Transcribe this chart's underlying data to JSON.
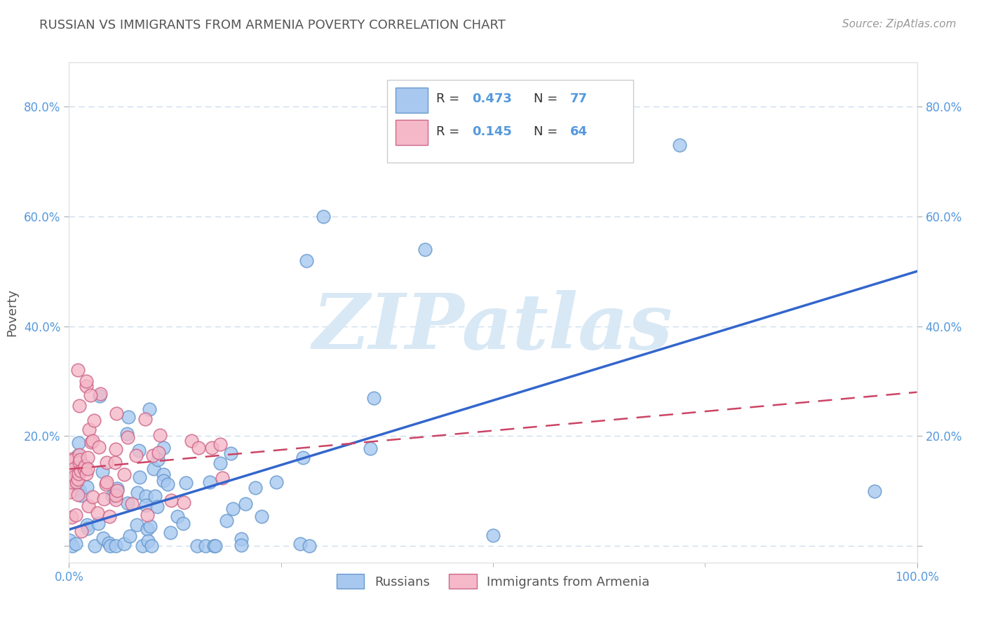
{
  "title": "RUSSIAN VS IMMIGRANTS FROM ARMENIA POVERTY CORRELATION CHART",
  "source": "Source: ZipAtlas.com",
  "ylabel": "Poverty",
  "xlim": [
    0,
    1.0
  ],
  "ylim": [
    -0.03,
    0.88
  ],
  "ytick_values": [
    0.0,
    0.2,
    0.4,
    0.6,
    0.8
  ],
  "ytick_labels": [
    "",
    "20.0%",
    "40.0%",
    "60.0%",
    "80.0%"
  ],
  "xtick_values": [
    0.0,
    1.0
  ],
  "xtick_labels": [
    "0.0%",
    "100.0%"
  ],
  "series1_color": "#a8c8f0",
  "series1_edge": "#6699cc",
  "series2_color": "#f5b8c8",
  "series2_edge": "#cc6688",
  "trendline1_color": "#3366cc",
  "trendline2_color": "#cc4466",
  "watermark": "ZIPatlas",
  "watermark_color": "#d8e8f5",
  "background_color": "#ffffff",
  "grid_color": "#ccddee",
  "tick_color": "#5599dd",
  "title_color": "#555555",
  "source_color": "#999999",
  "ylabel_color": "#555555",
  "legend_border": "#cccccc",
  "russia_n": 77,
  "armenia_n": 64,
  "russia_R": 0.473,
  "armenia_R": 0.145,
  "trendline1_y0": 0.03,
  "trendline1_y1": 0.5,
  "trendline2_y0": 0.14,
  "trendline2_y1": 0.28
}
